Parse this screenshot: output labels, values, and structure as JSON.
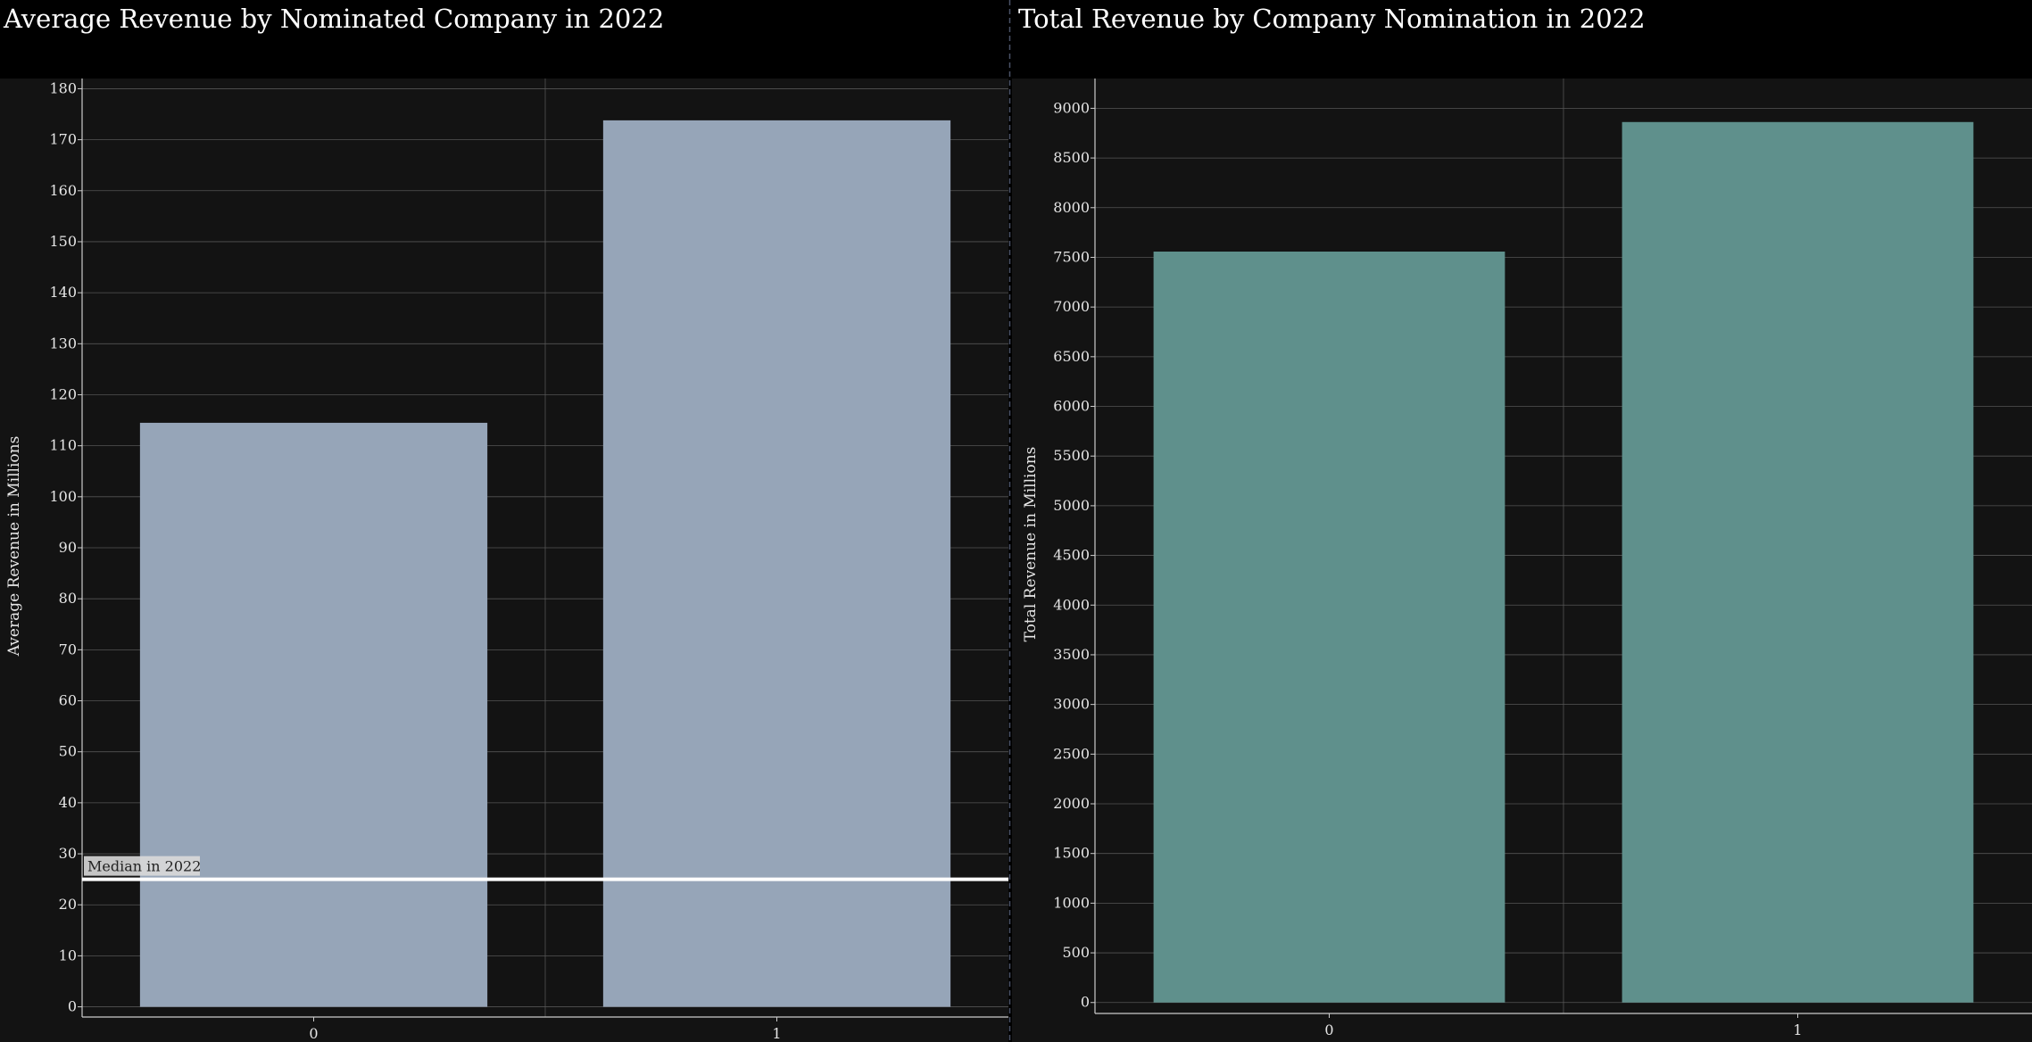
{
  "chart_data": [
    {
      "type": "bar",
      "title": "Average Revenue by Nominated Company in 2022",
      "xlabel": "",
      "ylabel": "Average Revenue in Millions",
      "categories": [
        "0",
        "1"
      ],
      "values": [
        114.5,
        173.8
      ],
      "ylim": [
        -2,
        182
      ],
      "yticks": [
        0,
        10,
        20,
        30,
        40,
        50,
        60,
        70,
        80,
        90,
        100,
        110,
        120,
        130,
        140,
        150,
        160,
        170,
        180
      ],
      "grid": true,
      "bar_color": "#96a5b8",
      "annotation": {
        "type": "horizontal-line",
        "value": 25,
        "label": "Median in 2022",
        "color": "#ffffff"
      }
    },
    {
      "type": "bar",
      "title": "Total Revenue by Company Nomination in 2022",
      "xlabel": "",
      "ylabel": "Total Revenue in Millions",
      "categories": [
        "0",
        "1"
      ],
      "values": [
        7558,
        8862
      ],
      "ylim": [
        -110,
        9300
      ],
      "yticks": [
        0,
        500,
        1000,
        1500,
        2000,
        2500,
        3000,
        3500,
        4000,
        4500,
        5000,
        5500,
        6000,
        6500,
        7000,
        7500,
        8000,
        8500,
        9000
      ],
      "grid": true,
      "bar_color": "#5f908c"
    }
  ]
}
